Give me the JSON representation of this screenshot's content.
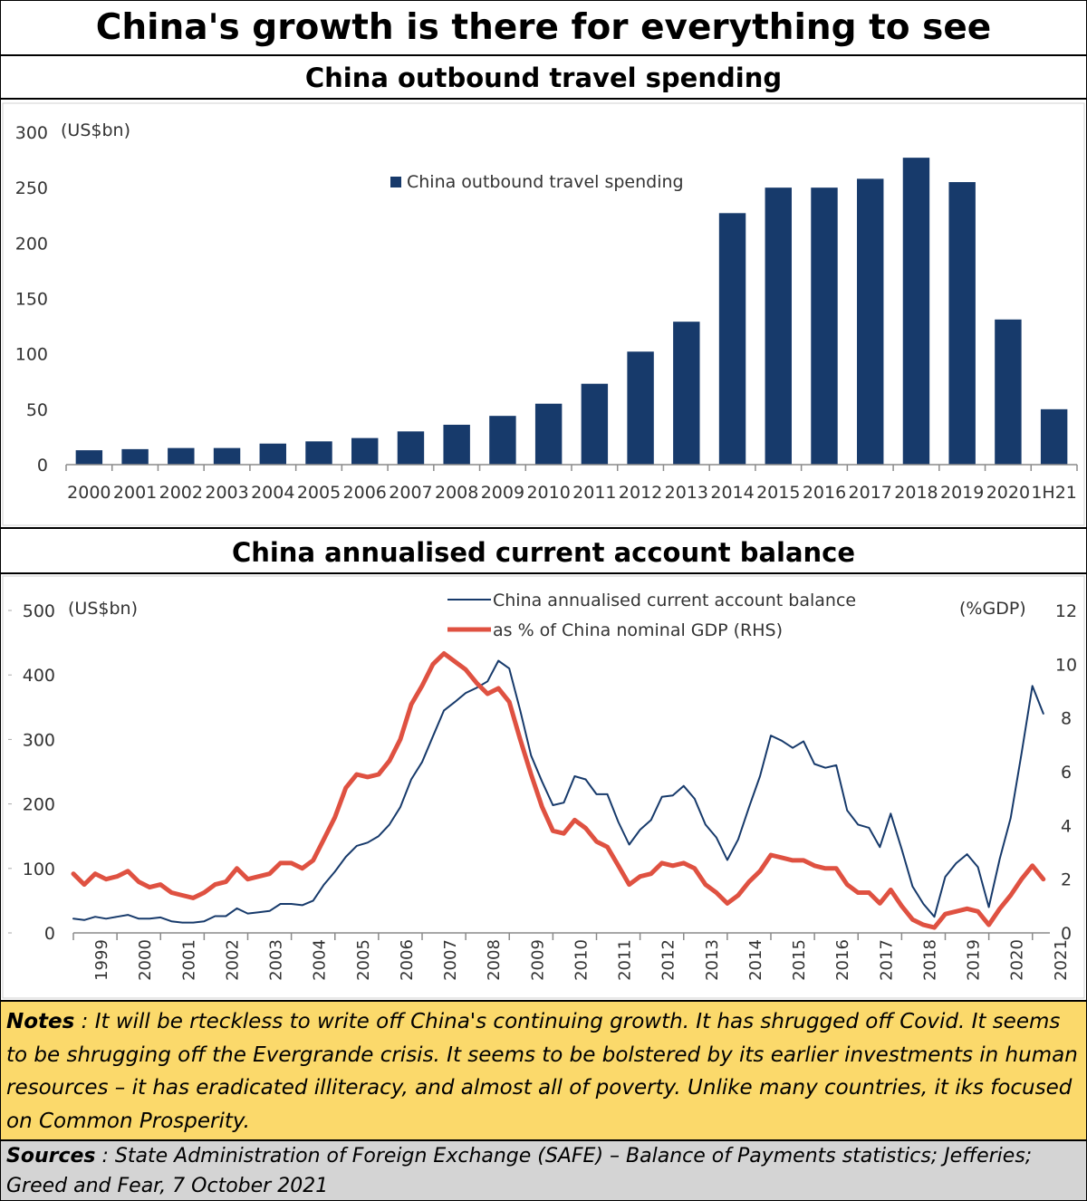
{
  "header": {
    "title": "China's growth is there for everything to see"
  },
  "chart_data": [
    {
      "type": "bar",
      "title": "China outbound travel spending",
      "unit_label": "(US$bn)",
      "legend": "China outbound travel spending",
      "legend_position": "top-center",
      "ylim": [
        0,
        300
      ],
      "yticks": [
        0,
        50,
        100,
        150,
        200,
        250,
        300
      ],
      "categories": [
        "2000",
        "2001",
        "2002",
        "2003",
        "2004",
        "2005",
        "2006",
        "2007",
        "2008",
        "2009",
        "2010",
        "2011",
        "2012",
        "2013",
        "2014",
        "2015",
        "2016",
        "2017",
        "2018",
        "2019",
        "2020",
        "1H21"
      ],
      "values": [
        13,
        14,
        15,
        15,
        19,
        21,
        24,
        30,
        36,
        44,
        55,
        73,
        102,
        129,
        227,
        250,
        250,
        258,
        277,
        255,
        131,
        50
      ],
      "color": "#173a6b",
      "grid": false
    },
    {
      "type": "line",
      "title": "China annualised current account balance",
      "left_unit_label": "(US$bn)",
      "right_unit_label": "(%GDP)",
      "ylim": [
        0,
        500
      ],
      "yticks": [
        0,
        100,
        200,
        300,
        400,
        500
      ],
      "y2lim": [
        0,
        12
      ],
      "y2ticks": [
        0,
        2,
        4,
        6,
        8,
        10,
        12
      ],
      "xlim": [
        1999,
        2021.4
      ],
      "xticks": [
        "1999",
        "2000",
        "2001",
        "2002",
        "2003",
        "2004",
        "2005",
        "2006",
        "2007",
        "2008",
        "2009",
        "2010",
        "2011",
        "2012",
        "2013",
        "2014",
        "2015",
        "2016",
        "2017",
        "2018",
        "2019",
        "2020",
        "2021"
      ],
      "grid": false,
      "legend_position": "top-center",
      "series": [
        {
          "name": "China annualised current account balance",
          "axis": "left",
          "color": "#173a6b",
          "x": [
            1999,
            1999.25,
            1999.5,
            1999.75,
            2000,
            2000.25,
            2000.5,
            2000.75,
            2001,
            2001.25,
            2001.5,
            2001.75,
            2002,
            2002.25,
            2002.5,
            2002.75,
            2003,
            2003.25,
            2003.5,
            2003.75,
            2004,
            2004.25,
            2004.5,
            2004.75,
            2005,
            2005.25,
            2005.5,
            2005.75,
            2006,
            2006.25,
            2006.5,
            2006.75,
            2007,
            2007.25,
            2007.5,
            2007.75,
            2008,
            2008.25,
            2008.5,
            2008.75,
            2009,
            2009.25,
            2009.5,
            2009.75,
            2010,
            2010.25,
            2010.5,
            2010.75,
            2011,
            2011.25,
            2011.5,
            2011.75,
            2012,
            2012.25,
            2012.5,
            2012.75,
            2013,
            2013.25,
            2013.5,
            2013.75,
            2014,
            2014.25,
            2014.5,
            2014.75,
            2015,
            2015.25,
            2015.5,
            2015.75,
            2016,
            2016.25,
            2016.5,
            2016.75,
            2017,
            2017.25,
            2017.5,
            2017.75,
            2018,
            2018.25,
            2018.5,
            2018.75,
            2019,
            2019.25,
            2019.5,
            2019.75,
            2020,
            2020.25,
            2020.5,
            2020.75,
            2021,
            2021.25
          ],
          "values": [
            22,
            20,
            25,
            22,
            25,
            28,
            22,
            22,
            24,
            18,
            16,
            16,
            18,
            26,
            26,
            38,
            30,
            32,
            34,
            45,
            45,
            43,
            50,
            75,
            95,
            118,
            135,
            140,
            150,
            168,
            195,
            238,
            265,
            305,
            345,
            358,
            372,
            380,
            390,
            422,
            410,
            345,
            275,
            235,
            198,
            202,
            243,
            238,
            215,
            215,
            172,
            137,
            160,
            175,
            211,
            213,
            228,
            208,
            168,
            148,
            113,
            145,
            195,
            243,
            306,
            298,
            287,
            297,
            262,
            256,
            260,
            190,
            168,
            163,
            133,
            185,
            130,
            72,
            45,
            25,
            87,
            108,
            122,
            102,
            40,
            115,
            178,
            278,
            383,
            340
          ]
        },
        {
          "name": "as % of China nominal GDP (RHS)",
          "axis": "right",
          "color": "#df5141",
          "x": [
            1999,
            1999.25,
            1999.5,
            1999.75,
            2000,
            2000.25,
            2000.5,
            2000.75,
            2001,
            2001.25,
            2001.5,
            2001.75,
            2002,
            2002.25,
            2002.5,
            2002.75,
            2003,
            2003.25,
            2003.5,
            2003.75,
            2004,
            2004.25,
            2004.5,
            2004.75,
            2005,
            2005.25,
            2005.5,
            2005.75,
            2006,
            2006.25,
            2006.5,
            2006.75,
            2007,
            2007.25,
            2007.5,
            2007.75,
            2008,
            2008.25,
            2008.5,
            2008.75,
            2009,
            2009.25,
            2009.5,
            2009.75,
            2010,
            2010.25,
            2010.5,
            2010.75,
            2011,
            2011.25,
            2011.5,
            2011.75,
            2012,
            2012.25,
            2012.5,
            2012.75,
            2013,
            2013.25,
            2013.5,
            2013.75,
            2014,
            2014.25,
            2014.5,
            2014.75,
            2015,
            2015.25,
            2015.5,
            2015.75,
            2016,
            2016.25,
            2016.5,
            2016.75,
            2017,
            2017.25,
            2017.5,
            2017.75,
            2018,
            2018.25,
            2018.5,
            2018.75,
            2019,
            2019.25,
            2019.5,
            2019.75,
            2020,
            2020.25,
            2020.5,
            2020.75,
            2021,
            2021.25
          ],
          "values": [
            2.2,
            1.8,
            2.2,
            2.0,
            2.1,
            2.3,
            1.9,
            1.7,
            1.8,
            1.5,
            1.4,
            1.3,
            1.5,
            1.8,
            1.9,
            2.4,
            2.0,
            2.1,
            2.2,
            2.6,
            2.6,
            2.4,
            2.7,
            3.5,
            4.3,
            5.4,
            5.9,
            5.8,
            5.9,
            6.4,
            7.2,
            8.5,
            9.2,
            10.0,
            10.4,
            10.1,
            9.8,
            9.3,
            8.9,
            9.1,
            8.6,
            7.2,
            5.9,
            4.7,
            3.8,
            3.7,
            4.2,
            3.9,
            3.4,
            3.2,
            2.5,
            1.8,
            2.1,
            2.2,
            2.6,
            2.5,
            2.6,
            2.4,
            1.8,
            1.5,
            1.1,
            1.4,
            1.9,
            2.3,
            2.9,
            2.8,
            2.7,
            2.7,
            2.5,
            2.4,
            2.4,
            1.8,
            1.5,
            1.5,
            1.1,
            1.6,
            1.0,
            0.5,
            0.3,
            0.2,
            0.7,
            0.8,
            0.9,
            0.8,
            0.3,
            0.9,
            1.4,
            2.0,
            2.5,
            2.0
          ]
        }
      ]
    }
  ],
  "notes": {
    "label": "Notes",
    "text": " : It will be rteckless to write off China's continuing growth.  It has shrugged off Covid. It seems to be shrugging off the Evergrande crisis.  It seems to be bolstered by its earlier investments in human resources – it has eradicated illiteracy, and almost all of poverty. Unlike many countries, it iks focused on Common Prosperity."
  },
  "sources": {
    "label": "Sources",
    "text": " : State Administration of Foreign Exchange (SAFE) – Balance of Payments statistics;  Jefferies; Greed and Fear, 7 October 2021"
  }
}
